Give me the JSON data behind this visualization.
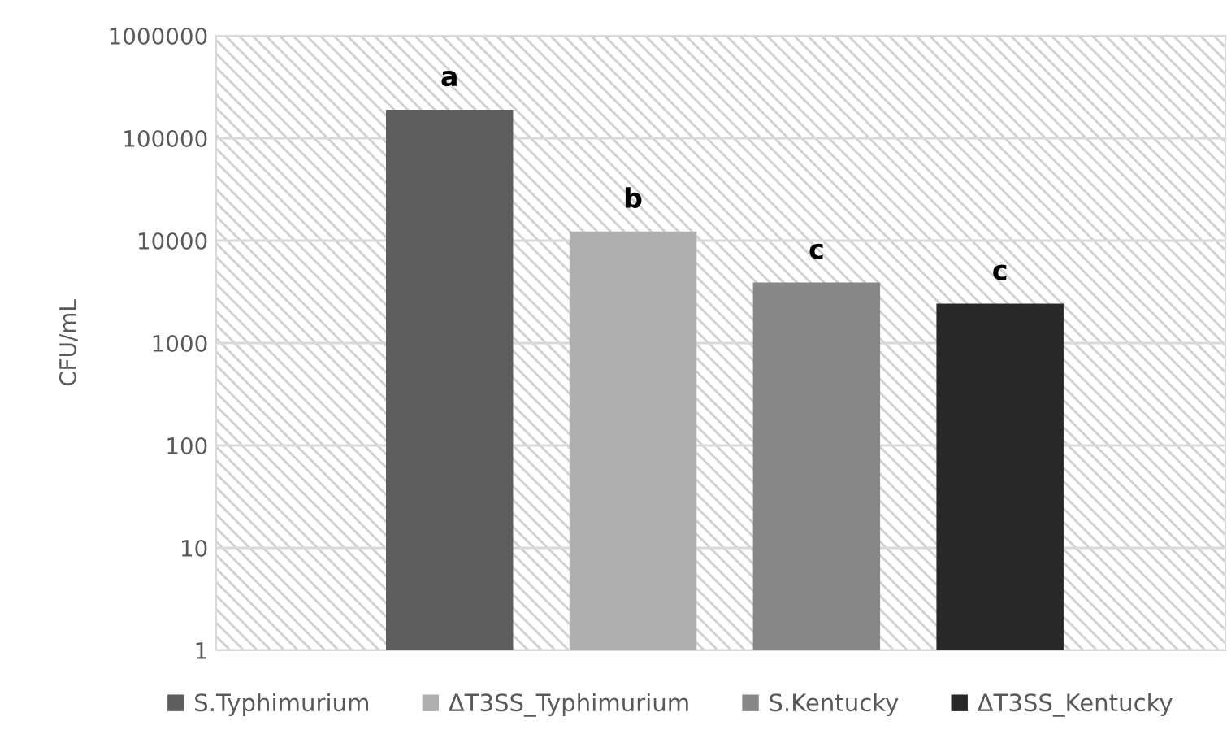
{
  "chart_data": {
    "type": "bar",
    "ylabel": "CFU/mL",
    "categories": [
      null
    ],
    "series": [
      {
        "name": "S.Typhimurium",
        "color": "#5e5e5e",
        "values": [
          190000
        ]
      },
      {
        "name": "ΔT3SS_Typhimurium",
        "color": "#afafaf",
        "values": [
          12300
        ]
      },
      {
        "name": "S.Kentucky",
        "color": "#878787",
        "values": [
          3900
        ]
      },
      {
        "name": "ΔT3SS_Kentucky",
        "color": "#282828",
        "values": [
          2430
        ]
      }
    ],
    "annotations": [
      "a",
      "b",
      "c",
      "c"
    ],
    "log": "y",
    "ylim": [
      1,
      1000000
    ],
    "yticks": [
      1,
      10,
      100,
      1000,
      10000,
      100000,
      1000000
    ],
    "grid": "y",
    "legend": "bottom"
  }
}
